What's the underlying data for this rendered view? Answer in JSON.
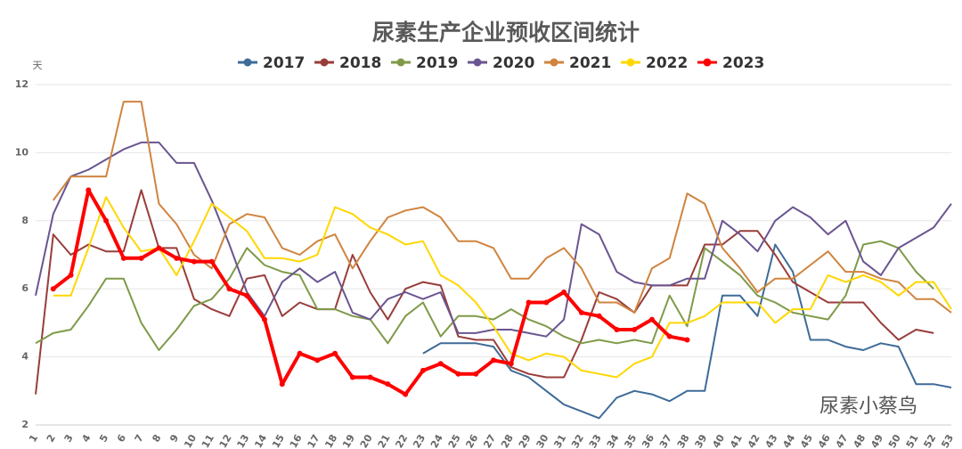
{
  "chart_data": {
    "type": "line",
    "title": "尿素生产企业预收区间统计",
    "y_label": "天",
    "annotation": "尿素小蔡鸟",
    "categories": [
      "1",
      "2",
      "3",
      "4",
      "5",
      "6",
      "7",
      "8",
      "9",
      "10",
      "11",
      "12",
      "13",
      "14",
      "15",
      "16",
      "17",
      "18",
      "19",
      "20",
      "21",
      "22",
      "23",
      "24",
      "25",
      "26",
      "27",
      "28",
      "29",
      "30",
      "31",
      "32",
      "33",
      "34",
      "35",
      "36",
      "37",
      "38",
      "39",
      "40",
      "41",
      "42",
      "43",
      "44",
      "45",
      "46",
      "47",
      "48",
      "49",
      "50",
      "51",
      "52",
      "53"
    ],
    "ylim": [
      2,
      12
    ],
    "yticks": [
      2,
      4,
      6,
      8,
      10,
      12
    ],
    "grid": true,
    "legend": "top",
    "series": [
      {
        "name": "2017",
        "color": "#3e6b98",
        "values": [
          null,
          null,
          null,
          null,
          null,
          null,
          null,
          null,
          null,
          null,
          null,
          null,
          null,
          null,
          null,
          null,
          null,
          null,
          null,
          null,
          null,
          null,
          4.1,
          4.4,
          4.4,
          4.4,
          4.3,
          3.6,
          3.4,
          3.0,
          2.6,
          2.4,
          2.2,
          2.8,
          3.0,
          2.9,
          2.7,
          3.0,
          3.0,
          5.8,
          5.8,
          5.2,
          7.3,
          6.5,
          4.5,
          4.5,
          4.3,
          4.2,
          4.4,
          4.3,
          3.2,
          3.2,
          3.1
        ]
      },
      {
        "name": "2018",
        "color": "#983d3a",
        "values": [
          2.9,
          7.6,
          7.0,
          7.3,
          7.1,
          7.1,
          8.9,
          7.2,
          7.2,
          5.7,
          5.4,
          5.2,
          6.3,
          6.4,
          5.2,
          5.6,
          5.4,
          5.4,
          7.0,
          5.9,
          5.1,
          6.0,
          6.2,
          6.1,
          4.6,
          4.5,
          4.5,
          3.7,
          3.5,
          3.4,
          3.4,
          4.5,
          5.9,
          5.7,
          5.3,
          6.1,
          6.1,
          6.1,
          7.3,
          7.3,
          7.7,
          7.7,
          7.0,
          6.2,
          5.9,
          5.6,
          5.6,
          5.6,
          5.0,
          4.5,
          4.8,
          4.7,
          null
        ]
      },
      {
        "name": "2019",
        "color": "#7f9a48",
        "values": [
          4.4,
          4.7,
          4.8,
          5.5,
          6.3,
          6.3,
          5.0,
          4.2,
          4.8,
          5.5,
          5.7,
          6.3,
          7.2,
          6.7,
          6.5,
          6.4,
          5.4,
          5.4,
          5.2,
          5.1,
          4.4,
          5.2,
          5.6,
          4.6,
          5.2,
          5.2,
          5.1,
          5.4,
          5.1,
          4.9,
          4.6,
          4.4,
          4.5,
          4.4,
          4.5,
          4.4,
          5.8,
          4.9,
          7.2,
          6.8,
          6.4,
          5.8,
          5.6,
          5.3,
          5.2,
          5.1,
          5.8,
          7.3,
          7.4,
          7.2,
          6.5,
          6.0,
          null
        ]
      },
      {
        "name": "2020",
        "color": "#6a5590",
        "values": [
          5.8,
          8.2,
          9.3,
          9.5,
          9.8,
          10.1,
          10.3,
          10.3,
          9.7,
          9.7,
          8.6,
          7.3,
          5.9,
          5.2,
          6.2,
          6.6,
          6.2,
          6.5,
          5.3,
          5.1,
          5.7,
          5.9,
          5.7,
          5.9,
          4.7,
          4.7,
          4.8,
          4.8,
          4.7,
          4.6,
          5.1,
          7.9,
          7.6,
          6.5,
          6.2,
          6.1,
          6.1,
          6.3,
          6.3,
          8.0,
          7.6,
          7.1,
          8.0,
          8.4,
          8.1,
          7.6,
          8.0,
          6.8,
          6.4,
          7.2,
          7.5,
          7.8,
          8.5
        ]
      },
      {
        "name": "2021",
        "color": "#d0843f",
        "values": [
          null,
          8.6,
          9.3,
          9.3,
          9.3,
          11.5,
          11.5,
          8.5,
          7.9,
          7.0,
          6.6,
          7.9,
          8.2,
          8.1,
          7.2,
          7.0,
          7.4,
          7.6,
          6.6,
          7.4,
          8.1,
          8.3,
          8.4,
          8.1,
          7.4,
          7.4,
          7.2,
          6.3,
          6.3,
          6.9,
          7.2,
          6.6,
          5.6,
          5.6,
          5.3,
          6.6,
          6.9,
          8.8,
          8.5,
          7.2,
          6.6,
          5.9,
          6.3,
          6.3,
          6.7,
          7.1,
          6.5,
          6.5,
          6.3,
          6.2,
          5.7,
          5.7,
          5.3
        ]
      },
      {
        "name": "2022",
        "color": "#ffd700",
        "values": [
          null,
          5.8,
          5.8,
          7.2,
          8.7,
          7.8,
          7.1,
          7.2,
          6.4,
          7.4,
          8.5,
          8.1,
          7.7,
          6.9,
          6.9,
          6.8,
          7.0,
          8.4,
          8.2,
          7.8,
          7.6,
          7.3,
          7.4,
          6.4,
          6.1,
          5.6,
          4.9,
          4.1,
          3.9,
          4.1,
          4.0,
          3.6,
          3.5,
          3.4,
          3.8,
          4.0,
          5.0,
          5.0,
          5.2,
          5.6,
          5.6,
          5.6,
          5.0,
          5.4,
          5.4,
          6.4,
          6.2,
          6.4,
          6.2,
          5.8,
          6.2,
          6.2,
          5.4
        ]
      },
      {
        "name": "2023",
        "color": "#ff0000",
        "values": [
          null,
          6.0,
          6.4,
          8.9,
          8.0,
          6.9,
          6.9,
          7.2,
          6.9,
          6.8,
          6.8,
          6.0,
          5.8,
          5.1,
          3.2,
          4.1,
          3.9,
          4.1,
          3.4,
          3.4,
          3.2,
          2.9,
          3.6,
          3.8,
          3.5,
          3.5,
          3.9,
          3.8,
          5.6,
          5.6,
          5.9,
          5.3,
          5.2,
          4.8,
          4.8,
          5.1,
          4.6,
          4.5,
          null,
          null,
          null,
          null,
          null,
          null,
          null,
          null,
          null,
          null,
          null,
          null,
          null,
          null,
          null
        ]
      }
    ]
  }
}
